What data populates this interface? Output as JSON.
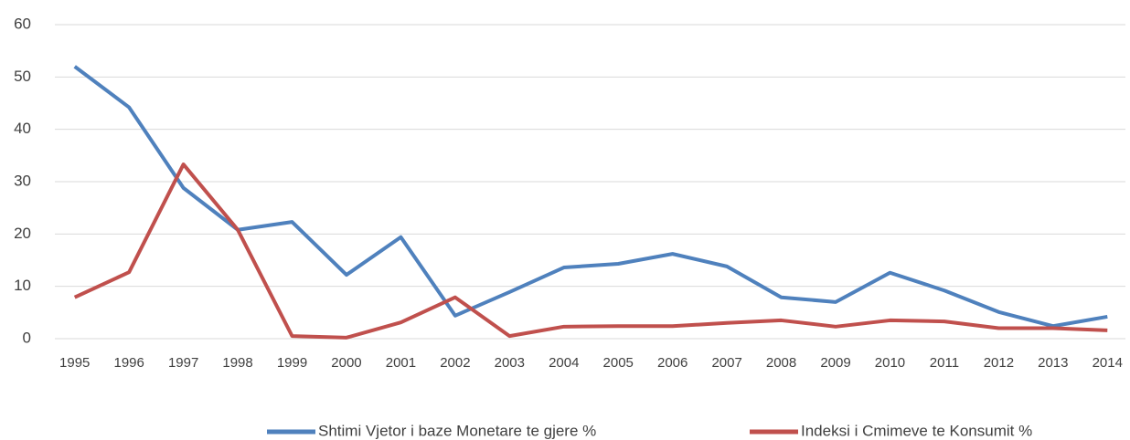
{
  "chart_data": {
    "type": "line",
    "categories": [
      "1995",
      "1996",
      "1997",
      "1998",
      "1999",
      "2000",
      "2001",
      "2002",
      "2003",
      "2004",
      "2005",
      "2006",
      "2007",
      "2008",
      "2009",
      "2010",
      "2011",
      "2012",
      "2013",
      "2014"
    ],
    "series": [
      {
        "name": "Shtimi Vjetor i baze Monetare te gjere %",
        "color": "#4f81bd",
        "values": [
          52.0,
          44.2,
          28.8,
          20.8,
          22.3,
          12.2,
          19.4,
          4.4,
          8.9,
          13.6,
          14.3,
          16.2,
          13.8,
          7.9,
          7.0,
          12.6,
          9.2,
          5.1,
          2.4,
          4.2
        ]
      },
      {
        "name": "Indeksi i Cmimeve te Konsumit %",
        "color": "#c0504d",
        "values": [
          7.9,
          12.7,
          33.3,
          20.8,
          0.5,
          0.2,
          3.1,
          7.9,
          0.5,
          2.3,
          2.4,
          2.4,
          3.0,
          3.5,
          2.3,
          3.5,
          3.3,
          2.0,
          2.0,
          1.6
        ]
      }
    ],
    "ylim": [
      0,
      60
    ],
    "yticks": [
      0,
      10,
      20,
      30,
      40,
      50,
      60
    ],
    "grid": true,
    "legend": "bottom"
  }
}
